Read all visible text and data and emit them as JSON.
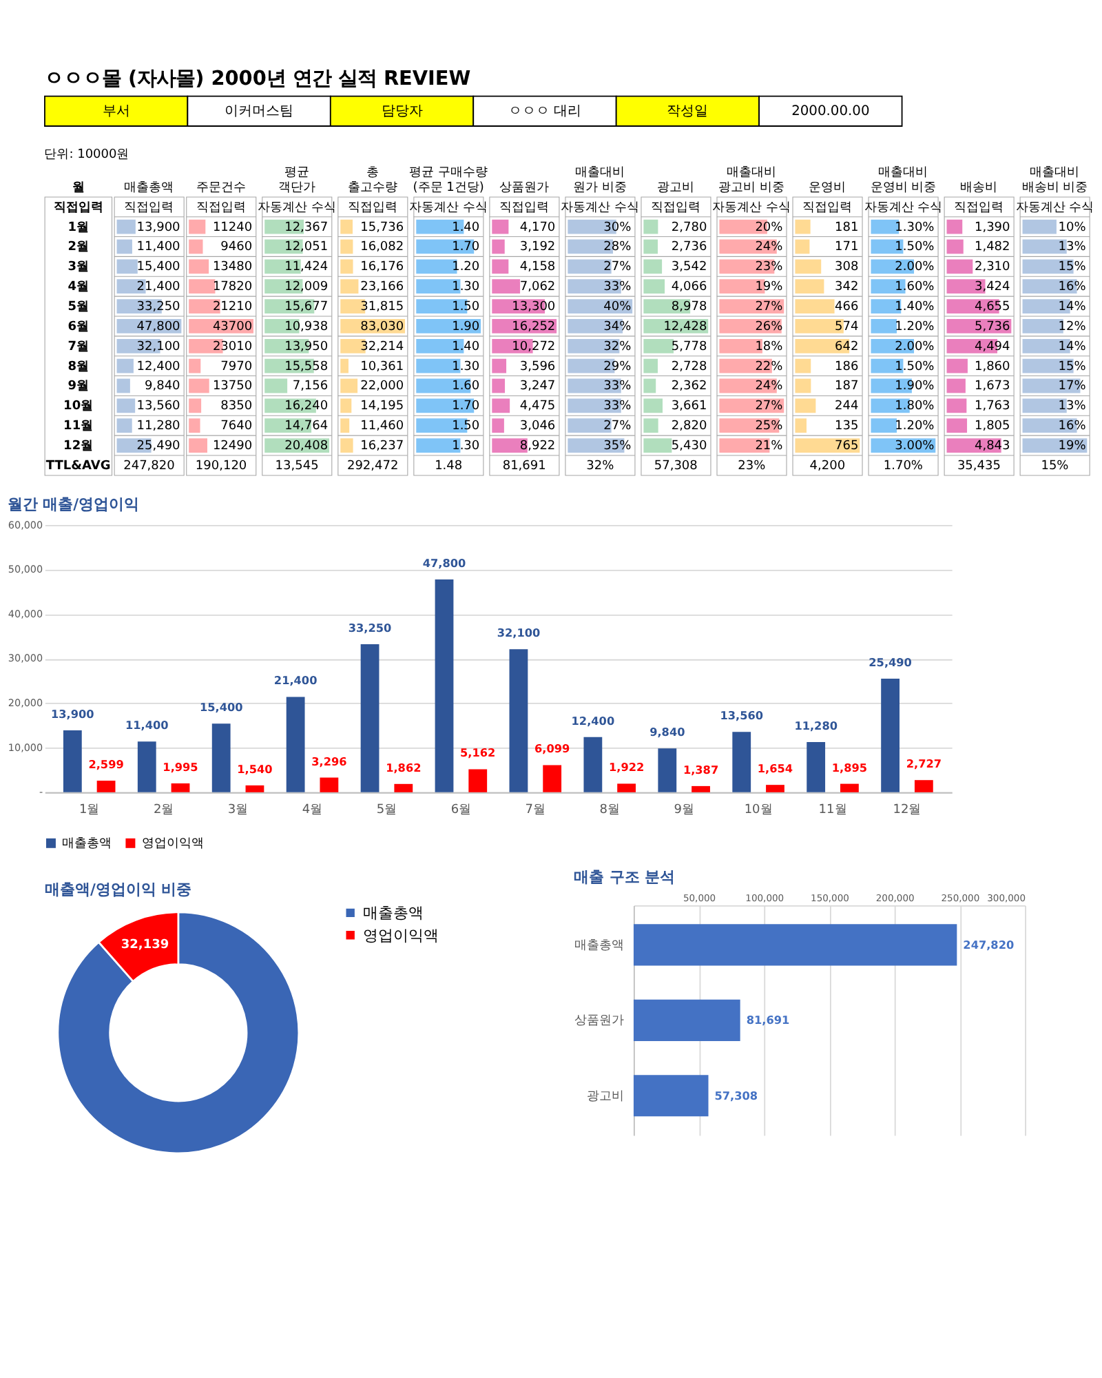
{
  "chart_data": [
    {
      "type": "other",
      "title": "ㅇㅇㅇ몰 (자사몰) 2000년 연간 실적 REVIEW",
      "annotations": [
        "부서",
        "이커머스팀",
        "담당자",
        "ㅇㅇㅇ 대리",
        "작성일",
        "2000.00.00"
      ]
    },
    {
      "type": "heatmap",
      "subtitle": "단위: 10000원",
      "ylabel": "월",
      "categories": [
        "매출총액",
        "주문건수",
        "평균 객단가",
        "총 출고수량",
        "평균 구매수량 (주문 1건당)",
        "상품원가",
        "매출대비 원가 비중",
        "광고비",
        "매출대비 광고비 비중",
        "운영비",
        "매출대비 운영비 비중",
        "배송비",
        "매출대비 배송비 비중"
      ],
      "colors": [
        "#638ec6",
        "#ff555a",
        "#63be7b",
        "#ffb628",
        "#008aef",
        "#d6007b",
        "#638ec6",
        "#63be7b",
        "#ff555a",
        "#ffb628",
        "#008aef",
        "#d6007b",
        "#638ec6"
      ],
      "y_categories": [
        "직접입력",
        "1월",
        "2월",
        "3월",
        "4월",
        "5월",
        "6월",
        "7월",
        "8월",
        "9월",
        "10월",
        "11월",
        "12월",
        "TTL&AVG"
      ],
      "cells": [
        [
          null,
          null,
          null,
          null,
          null,
          null,
          null,
          null,
          null,
          null,
          null,
          null,
          null
        ],
        [
          13900,
          11240,
          12367,
          15736,
          1.4,
          4170,
          30,
          2780,
          20,
          181,
          1.3,
          1390,
          10
        ],
        [
          11400,
          9460,
          12051,
          16082,
          1.7,
          3192,
          28,
          2736,
          24,
          171,
          1.5,
          1482,
          13
        ],
        [
          15400,
          13480,
          11424,
          16176,
          1.2,
          4158,
          27,
          3542,
          23,
          308,
          2.0,
          2310,
          15
        ],
        [
          21400,
          17820,
          12009,
          23166,
          1.3,
          7062,
          33,
          4066,
          19,
          342,
          1.6,
          3424,
          16
        ],
        [
          33250,
          21210,
          15677,
          31815,
          1.5,
          13300,
          40,
          8978,
          27,
          466,
          1.4,
          4655,
          14
        ],
        [
          47800,
          43700,
          10938,
          83030,
          1.9,
          16252,
          34,
          12428,
          26,
          574,
          1.2,
          5736,
          12
        ],
        [
          32100,
          23010,
          13950,
          32214,
          1.4,
          10272,
          32,
          5778,
          18,
          642,
          2.0,
          4494,
          14
        ],
        [
          12400,
          7970,
          15558,
          10361,
          1.3,
          3596,
          29,
          2728,
          22,
          186,
          1.5,
          1860,
          15
        ],
        [
          9840,
          13750,
          7156,
          22000,
          1.6,
          3247,
          33,
          2362,
          24,
          187,
          1.9,
          1673,
          17
        ],
        [
          13560,
          8350,
          16240,
          14195,
          1.7,
          4475,
          33,
          3661,
          27,
          244,
          1.8,
          1763,
          13
        ],
        [
          11280,
          7640,
          14764,
          11460,
          1.5,
          3046,
          27,
          2820,
          25,
          135,
          1.2,
          1805,
          16
        ],
        [
          25490,
          12490,
          20408,
          16237,
          1.3,
          8922,
          35,
          5430,
          21,
          765,
          3.0,
          4843,
          19
        ],
        [
          null,
          null,
          null,
          null,
          null,
          null,
          null,
          null,
          null,
          null,
          null,
          null,
          null
        ]
      ],
      "cell_labels": [
        [
          "직접입력",
          "직접입력",
          "자동계산 수식",
          "직접입력",
          "자동계산 수식",
          "직접입력",
          "자동계산 수식",
          "직접입력",
          "자동계산 수식",
          "직접입력",
          "자동계산 수식",
          "직접입력",
          "자동계산 수식"
        ],
        [
          "13,900",
          "11240",
          "12,367",
          "15,736",
          "1.40",
          "4,170",
          "30%",
          "2,780",
          "20%",
          "181",
          "1.30%",
          "1,390",
          "10%"
        ],
        [
          "11,400",
          "9460",
          "12,051",
          "16,082",
          "1.70",
          "3,192",
          "28%",
          "2,736",
          "24%",
          "171",
          "1.50%",
          "1,482",
          "13%"
        ],
        [
          "15,400",
          "13480",
          "11,424",
          "16,176",
          "1.20",
          "4,158",
          "27%",
          "3,542",
          "23%",
          "308",
          "2.00%",
          "2,310",
          "15%"
        ],
        [
          "21,400",
          "17820",
          "12,009",
          "23,166",
          "1.30",
          "7,062",
          "33%",
          "4,066",
          "19%",
          "342",
          "1.60%",
          "3,424",
          "16%"
        ],
        [
          "33,250",
          "21210",
          "15,677",
          "31,815",
          "1.50",
          "13,300",
          "40%",
          "8,978",
          "27%",
          "466",
          "1.40%",
          "4,655",
          "14%"
        ],
        [
          "47,800",
          "43700",
          "10,938",
          "83,030",
          "1.90",
          "16,252",
          "34%",
          "12,428",
          "26%",
          "574",
          "1.20%",
          "5,736",
          "12%"
        ],
        [
          "32,100",
          "23010",
          "13,950",
          "32,214",
          "1.40",
          "10,272",
          "32%",
          "5,778",
          "18%",
          "642",
          "2.00%",
          "4,494",
          "14%"
        ],
        [
          "12,400",
          "7970",
          "15,558",
          "10,361",
          "1.30",
          "3,596",
          "29%",
          "2,728",
          "22%",
          "186",
          "1.50%",
          "1,860",
          "15%"
        ],
        [
          "9,840",
          "13750",
          "7,156",
          "22,000",
          "1.60",
          "3,247",
          "33%",
          "2,362",
          "24%",
          "187",
          "1.90%",
          "1,673",
          "17%"
        ],
        [
          "13,560",
          "8350",
          "16,240",
          "14,195",
          "1.70",
          "4,475",
          "33%",
          "3,661",
          "27%",
          "244",
          "1.80%",
          "1,763",
          "13%"
        ],
        [
          "11,280",
          "7640",
          "14,764",
          "11,460",
          "1.50",
          "3,046",
          "27%",
          "2,820",
          "25%",
          "135",
          "1.20%",
          "1,805",
          "16%"
        ],
        [
          "25,490",
          "12490",
          "20,408",
          "16,237",
          "1.30",
          "8,922",
          "35%",
          "5,430",
          "21%",
          "765",
          "3.00%",
          "4,843",
          "19%"
        ],
        [
          "247,820",
          "190,120",
          "13,545",
          "292,472",
          "1.48",
          "81,691",
          "32%",
          "57,308",
          "23%",
          "4,200",
          "1.70%",
          "35,435",
          "15%"
        ]
      ]
    },
    {
      "type": "bar",
      "title": "월간 매출/영업이익",
      "categories": [
        "1월",
        "2월",
        "3월",
        "4월",
        "5월",
        "6월",
        "7월",
        "8월",
        "9월",
        "10월",
        "11월",
        "12월"
      ],
      "series": [
        {
          "name": "매출총액",
          "color": "#2f5597",
          "values": [
            13900,
            11400,
            15400,
            21400,
            33250,
            47800,
            32100,
            12400,
            9840,
            13560,
            11280,
            25490
          ],
          "value_labels": [
            "13,900",
            "11,400",
            "15,400",
            "21,400",
            "33,250",
            "47,800",
            "32,100",
            "12,400",
            "9,840",
            "13,560",
            "11,280",
            "25,490"
          ]
        },
        {
          "name": "영업이익액",
          "color": "#ff0000",
          "values": [
            2599,
            1995,
            1540,
            3296,
            1862,
            5162,
            6099,
            1922,
            1387,
            1654,
            1895,
            2727
          ],
          "value_labels": [
            "2,599",
            "1,995",
            "1,540",
            "3,296",
            "1,862",
            "5,162",
            "6,099",
            "1,922",
            "1,387",
            "1,654",
            "1,895",
            "2,727"
          ]
        }
      ],
      "ylim": [
        0,
        60000
      ],
      "yticks": [
        {
          "value": 0,
          "label": "-"
        },
        {
          "value": 10000,
          "label": "10,000"
        },
        {
          "value": 20000,
          "label": "20,000"
        },
        {
          "value": 30000,
          "label": "30,000"
        },
        {
          "value": 40000,
          "label": "40,000"
        },
        {
          "value": 50000,
          "label": "50,000"
        },
        {
          "value": 60000,
          "label": "60,000"
        }
      ],
      "grid": "y",
      "legend": "bottom"
    },
    {
      "type": "donut",
      "title": "매출액/영업이익 비중",
      "categories": [
        "매출총액",
        "영업이익액"
      ],
      "values": [
        247820,
        32139
      ],
      "colors": [
        "#3a66b5",
        "#ff0000"
      ],
      "value_labels": [
        null,
        "32,139"
      ],
      "legend": "right"
    },
    {
      "type": "bar",
      "orientation": "horizontal",
      "title": "매출 구조 분석",
      "categories": [
        "매출총액",
        "상품원가",
        "광고비"
      ],
      "values": [
        247820,
        81691,
        57308
      ],
      "value_labels": [
        "247,820",
        "81,691",
        "57,308"
      ],
      "color": "#4472c4",
      "xlim": [
        0,
        300000
      ],
      "xticks": [
        {
          "value": 50000,
          "label": "50,000"
        },
        {
          "value": 100000,
          "label": "100,000"
        },
        {
          "value": 150000,
          "label": "150,000"
        },
        {
          "value": 200000,
          "label": "200,000"
        },
        {
          "value": 250000,
          "label": "250,000"
        },
        {
          "value": 300000,
          "label": "300,000"
        }
      ],
      "grid": "x"
    }
  ]
}
